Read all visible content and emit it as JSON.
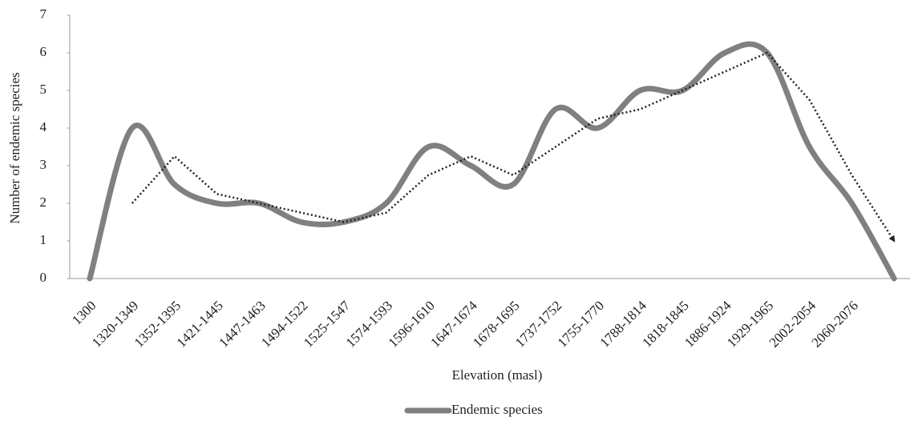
{
  "chart_data": {
    "type": "line",
    "x_label": "Elevation (masl)",
    "y_label": "Number of endemic species",
    "categories": [
      "1300",
      "1320-1349",
      "1352-1395",
      "1421-1445",
      "1447-1463",
      "1494-1522",
      "1525-1547",
      "1574-1593",
      "1596-1610",
      "1647-1674",
      "1678-1695",
      "1737-1752",
      "1755-1770",
      "1788-1814",
      "1818-1845",
      "1886-1924",
      "1929-1965",
      "2002-2054",
      "2060-2076",
      null
    ],
    "series": [
      {
        "name": "Endemic species",
        "color": "#808080",
        "values": [
          0,
          4,
          2.5,
          2,
          2,
          1.5,
          1.5,
          2,
          3.5,
          3,
          2.5,
          4.5,
          4,
          5,
          5,
          6,
          6,
          3.5,
          2,
          0
        ]
      }
    ],
    "trendline": {
      "color": "#222222",
      "values": [
        null,
        2,
        3.25,
        2.25,
        2,
        1.75,
        1.5,
        1.75,
        2.75,
        3.25,
        2.75,
        3.5,
        4.25,
        4.5,
        5,
        5.5,
        6,
        4.75,
        2.75,
        1
      ]
    },
    "ylim": [
      0,
      7
    ],
    "yticks": [
      0,
      1,
      2,
      3,
      4,
      5,
      6,
      7
    ],
    "legend": "bottom"
  }
}
